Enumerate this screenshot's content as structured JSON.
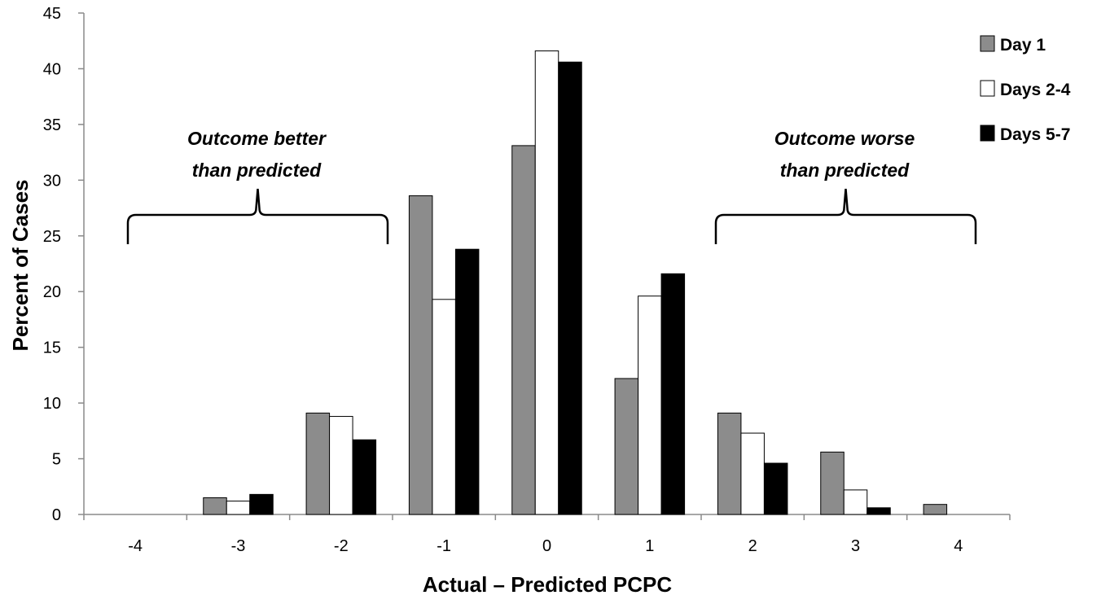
{
  "chart_data": {
    "type": "bar",
    "xlabel": "Actual – Predicted PCPC",
    "ylabel": "Percent of Cases",
    "ylim": [
      0,
      45
    ],
    "yticks": [
      "0",
      "5",
      "10",
      "15",
      "20",
      "25",
      "30",
      "35",
      "40",
      "45"
    ],
    "categories": [
      "-4",
      "-3",
      "-2",
      "-1",
      "0",
      "1",
      "2",
      "3",
      "4"
    ],
    "series": [
      {
        "name": "Day 1",
        "color": "#8c8c8c",
        "values": [
          0,
          1.5,
          9.1,
          28.6,
          33.1,
          12.2,
          9.1,
          5.6,
          0.9
        ]
      },
      {
        "name": "Days 2-4",
        "color": "#ffffff",
        "values": [
          0,
          1.2,
          8.8,
          19.3,
          41.6,
          19.6,
          7.3,
          2.2,
          0
        ]
      },
      {
        "name": "Days 5-7",
        "color": "#000000",
        "values": [
          0,
          1.8,
          6.7,
          23.8,
          40.6,
          21.6,
          4.6,
          0.6,
          0
        ]
      }
    ],
    "legend_position": "top-right",
    "grid": false,
    "annotations": {
      "left": [
        "Outcome better",
        "than predicted"
      ],
      "right": [
        "Outcome worse",
        "than predicted"
      ]
    }
  }
}
